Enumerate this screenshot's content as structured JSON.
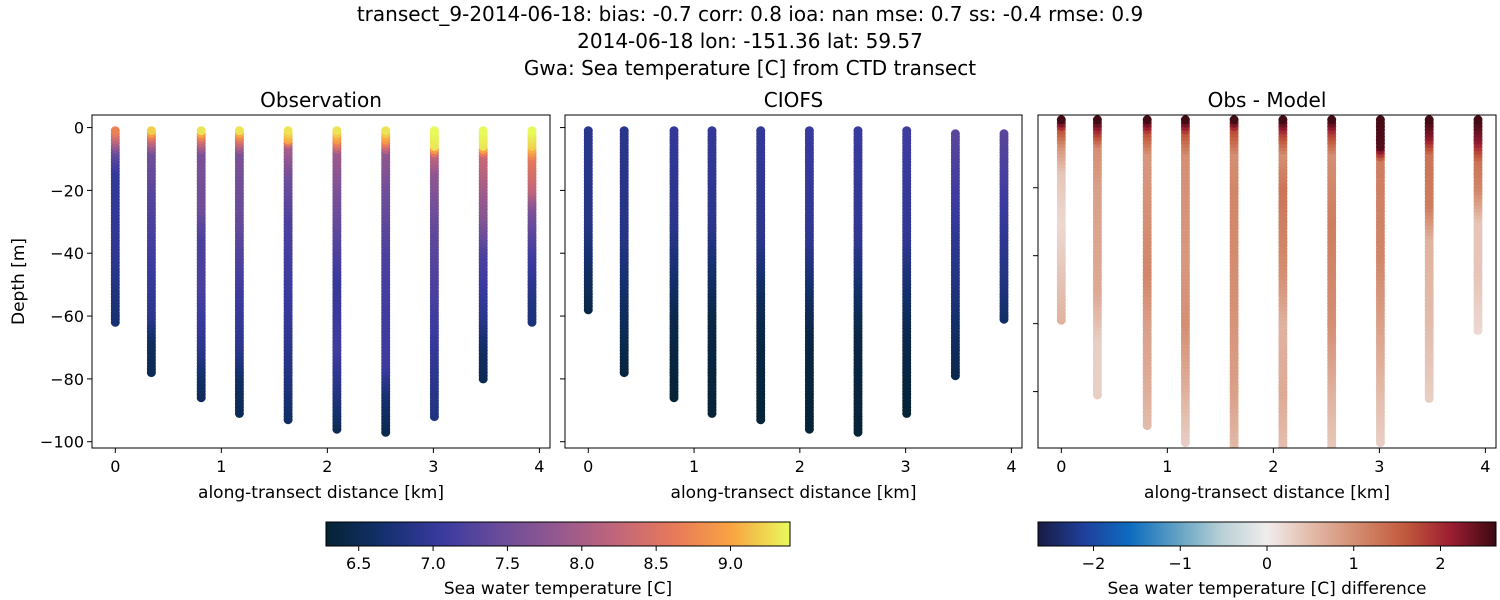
{
  "figure": {
    "title_lines": [
      "transect_9-2014-06-18: bias: -0.7  corr: 0.8  ioa: nan  mse: 0.7  ss: -0.4  rmse: 0.9",
      "2014-06-18 lon: -151.36 lat: 59.57",
      "Gwa: Sea temperature [C] from CTD transect"
    ]
  },
  "chart_data": [
    {
      "type": "scatter",
      "title": "Observation",
      "xlabel": "along-transect distance [km]",
      "ylabel": "Depth [m]",
      "xlim": [
        -0.22,
        4.1
      ],
      "ylim": [
        -102,
        4
      ],
      "xticks": [
        "0",
        "1",
        "2",
        "3",
        "4"
      ],
      "yticks": [
        "0",
        "−20",
        "−40",
        "−60",
        "−80",
        "−100"
      ],
      "colormap": "thermal",
      "clim": [
        6.28,
        9.4
      ],
      "stations": [
        {
          "x": 0.0,
          "top": -1,
          "bottom": -62,
          "profile": [
            [
              -1,
              8.7
            ],
            [
              -4,
              8.2
            ],
            [
              -8,
              7.4
            ],
            [
              -14,
              7.0
            ],
            [
              -40,
              6.95
            ],
            [
              -55,
              6.75
            ],
            [
              -62,
              6.7
            ]
          ]
        },
        {
          "x": 0.34,
          "top": -1,
          "bottom": -78,
          "profile": [
            [
              -1,
              9.2
            ],
            [
              -4,
              8.3
            ],
            [
              -8,
              7.5
            ],
            [
              -20,
              7.3
            ],
            [
              -40,
              7.1
            ],
            [
              -60,
              6.9
            ],
            [
              -68,
              6.55
            ],
            [
              -78,
              6.5
            ]
          ]
        },
        {
          "x": 0.81,
          "top": -1,
          "bottom": -86,
          "profile": [
            [
              -1,
              9.3
            ],
            [
              -4,
              8.4
            ],
            [
              -8,
              7.6
            ],
            [
              -25,
              7.5
            ],
            [
              -35,
              7.2
            ],
            [
              -50,
              7.2
            ],
            [
              -70,
              6.9
            ],
            [
              -80,
              6.6
            ],
            [
              -86,
              6.55
            ]
          ]
        },
        {
          "x": 1.17,
          "top": -1,
          "bottom": -91,
          "profile": [
            [
              -1,
              9.3
            ],
            [
              -4,
              8.5
            ],
            [
              -8,
              7.6
            ],
            [
              -30,
              7.4
            ],
            [
              -50,
              7.1
            ],
            [
              -70,
              6.9
            ],
            [
              -80,
              6.6
            ],
            [
              -91,
              6.5
            ]
          ]
        },
        {
          "x": 1.63,
          "top": -1,
          "bottom": -93,
          "profile": [
            [
              -1,
              9.3
            ],
            [
              -4,
              9.0
            ],
            [
              -6,
              8.0
            ],
            [
              -15,
              7.5
            ],
            [
              -30,
              7.2
            ],
            [
              -60,
              7.0
            ],
            [
              -80,
              6.8
            ],
            [
              -93,
              6.6
            ]
          ]
        },
        {
          "x": 2.09,
          "top": -1,
          "bottom": -96,
          "profile": [
            [
              -1,
              9.3
            ],
            [
              -4,
              8.9
            ],
            [
              -8,
              7.9
            ],
            [
              -20,
              7.6
            ],
            [
              -35,
              7.3
            ],
            [
              -50,
              7.0
            ],
            [
              -70,
              7.1
            ],
            [
              -85,
              6.8
            ],
            [
              -96,
              6.5
            ]
          ]
        },
        {
          "x": 2.55,
          "top": -1,
          "bottom": -97,
          "profile": [
            [
              -1,
              9.3
            ],
            [
              -4,
              8.9
            ],
            [
              -8,
              7.8
            ],
            [
              -20,
              7.5
            ],
            [
              -40,
              7.2
            ],
            [
              -60,
              7.1
            ],
            [
              -75,
              7.1
            ],
            [
              -85,
              6.7
            ],
            [
              -97,
              6.45
            ]
          ]
        },
        {
          "x": 3.01,
          "top": -1,
          "bottom": -92,
          "profile": [
            [
              -1,
              9.4
            ],
            [
              -6,
              9.3
            ],
            [
              -9,
              8.2
            ],
            [
              -14,
              7.8
            ],
            [
              -30,
              7.4
            ],
            [
              -50,
              7.2
            ],
            [
              -70,
              7.0
            ],
            [
              -92,
              6.8
            ]
          ]
        },
        {
          "x": 3.47,
          "top": -1,
          "bottom": -80,
          "profile": [
            [
              -1,
              9.4
            ],
            [
              -6,
              9.3
            ],
            [
              -9,
              8.3
            ],
            [
              -18,
              8.0
            ],
            [
              -28,
              7.7
            ],
            [
              -40,
              7.2
            ],
            [
              -60,
              6.9
            ],
            [
              -70,
              6.6
            ],
            [
              -80,
              6.5
            ]
          ]
        },
        {
          "x": 3.93,
          "top": -1,
          "bottom": -62,
          "profile": [
            [
              -1,
              9.4
            ],
            [
              -6,
              9.2
            ],
            [
              -10,
              8.6
            ],
            [
              -20,
              8.2
            ],
            [
              -26,
              7.6
            ],
            [
              -40,
              7.1
            ],
            [
              -55,
              6.8
            ],
            [
              -62,
              6.75
            ]
          ]
        }
      ]
    },
    {
      "type": "scatter",
      "title": "CIOFS",
      "xlabel": "along-transect distance [km]",
      "xlim": [
        -0.22,
        4.1
      ],
      "ylim": [
        -102,
        4
      ],
      "xticks": [
        "0",
        "1",
        "2",
        "3",
        "4"
      ],
      "colormap": "thermal",
      "clim": [
        6.28,
        9.4
      ],
      "stations": [
        {
          "x": 0.0,
          "top": -1,
          "bottom": -58,
          "profile": [
            [
              -1,
              6.9
            ],
            [
              -30,
              6.85
            ],
            [
              -45,
              6.6
            ],
            [
              -58,
              6.4
            ]
          ]
        },
        {
          "x": 0.34,
          "top": -1,
          "bottom": -78,
          "profile": [
            [
              -1,
              6.9
            ],
            [
              -35,
              6.85
            ],
            [
              -55,
              6.6
            ],
            [
              -78,
              6.35
            ]
          ]
        },
        {
          "x": 0.81,
          "top": -1,
          "bottom": -86,
          "profile": [
            [
              -1,
              7.0
            ],
            [
              -30,
              6.9
            ],
            [
              -45,
              6.7
            ],
            [
              -60,
              6.45
            ],
            [
              -86,
              6.3
            ]
          ]
        },
        {
          "x": 1.17,
          "top": -1,
          "bottom": -91,
          "profile": [
            [
              -1,
              7.0
            ],
            [
              -30,
              6.9
            ],
            [
              -45,
              6.65
            ],
            [
              -60,
              6.4
            ],
            [
              -91,
              6.3
            ]
          ]
        },
        {
          "x": 1.63,
          "top": -1,
          "bottom": -93,
          "profile": [
            [
              -1,
              7.0
            ],
            [
              -35,
              6.9
            ],
            [
              -50,
              6.6
            ],
            [
              -65,
              6.4
            ],
            [
              -93,
              6.3
            ]
          ]
        },
        {
          "x": 2.09,
          "top": -1,
          "bottom": -96,
          "profile": [
            [
              -1,
              7.05
            ],
            [
              -35,
              6.95
            ],
            [
              -50,
              6.65
            ],
            [
              -65,
              6.4
            ],
            [
              -96,
              6.3
            ]
          ]
        },
        {
          "x": 2.55,
          "top": -1,
          "bottom": -97,
          "profile": [
            [
              -1,
              7.05
            ],
            [
              -35,
              6.95
            ],
            [
              -50,
              6.65
            ],
            [
              -65,
              6.4
            ],
            [
              -97,
              6.3
            ]
          ]
        },
        {
          "x": 3.01,
          "top": -1,
          "bottom": -91,
          "profile": [
            [
              -1,
              7.1
            ],
            [
              -35,
              6.95
            ],
            [
              -50,
              6.7
            ],
            [
              -65,
              6.45
            ],
            [
              -91,
              6.3
            ]
          ]
        },
        {
          "x": 3.47,
          "top": -2,
          "bottom": -79,
          "profile": [
            [
              -2,
              7.3
            ],
            [
              -30,
              7.0
            ],
            [
              -50,
              6.8
            ],
            [
              -65,
              6.6
            ],
            [
              -79,
              6.45
            ]
          ]
        },
        {
          "x": 3.93,
          "top": -2,
          "bottom": -61,
          "profile": [
            [
              -2,
              7.3
            ],
            [
              -30,
              7.0
            ],
            [
              -50,
              6.8
            ],
            [
              -61,
              6.6
            ]
          ]
        }
      ]
    },
    {
      "type": "scatter",
      "title": "Obs - Model",
      "xlabel": "along-transect distance [km]",
      "xlim": [
        -0.22,
        4.1
      ],
      "ylim": [
        -96.6,
        1.4
      ],
      "xticks": [
        "0",
        "1",
        "2",
        "3",
        "4"
      ],
      "yticks_unlabeled": [
        -20,
        -40,
        -60,
        -80
      ],
      "colormap": "balance",
      "clim": [
        -2.64,
        2.64
      ],
      "stations": [
        {
          "x": 0.0,
          "top": 0,
          "bottom": -59,
          "profile": [
            [
              0,
              2.6
            ],
            [
              -3,
              1.6
            ],
            [
              -8,
              0.9
            ],
            [
              -15,
              0.4
            ],
            [
              -30,
              0.2
            ],
            [
              -45,
              0.4
            ],
            [
              -59,
              0.6
            ]
          ]
        },
        {
          "x": 0.34,
          "top": 0,
          "bottom": -81,
          "profile": [
            [
              0,
              2.6
            ],
            [
              -4,
              1.8
            ],
            [
              -8,
              1.0
            ],
            [
              -20,
              0.8
            ],
            [
              -50,
              0.7
            ],
            [
              -65,
              0.3
            ],
            [
              -81,
              0.3
            ]
          ]
        },
        {
          "x": 0.81,
          "top": 0,
          "bottom": -90,
          "profile": [
            [
              0,
              2.6
            ],
            [
              -4,
              1.6
            ],
            [
              -10,
              0.9
            ],
            [
              -30,
              1.0
            ],
            [
              -45,
              1.1
            ],
            [
              -60,
              0.8
            ],
            [
              -75,
              0.7
            ],
            [
              -90,
              0.5
            ]
          ]
        },
        {
          "x": 1.17,
          "top": 0,
          "bottom": -95,
          "profile": [
            [
              0,
              2.6
            ],
            [
              -4,
              1.6
            ],
            [
              -10,
              1.0
            ],
            [
              -40,
              0.9
            ],
            [
              -60,
              1.0
            ],
            [
              -80,
              0.6
            ],
            [
              -95,
              0.3
            ]
          ]
        },
        {
          "x": 1.63,
          "top": 0,
          "bottom": -97,
          "profile": [
            [
              0,
              2.6
            ],
            [
              -3,
              1.7
            ],
            [
              -10,
              1.0
            ],
            [
              -20,
              1.1
            ],
            [
              -50,
              1.0
            ],
            [
              -80,
              0.8
            ],
            [
              -97,
              0.5
            ]
          ]
        },
        {
          "x": 2.09,
          "top": 0,
          "bottom": -101,
          "profile": [
            [
              0,
              2.6
            ],
            [
              -4,
              1.8
            ],
            [
              -10,
              1.0
            ],
            [
              -20,
              1.3
            ],
            [
              -45,
              1.0
            ],
            [
              -60,
              0.6
            ],
            [
              -80,
              0.7
            ],
            [
              -101,
              0.4
            ]
          ]
        },
        {
          "x": 2.55,
          "top": 0,
          "bottom": -101,
          "profile": [
            [
              0,
              2.6
            ],
            [
              -4,
              1.8
            ],
            [
              -10,
              1.0
            ],
            [
              -30,
              1.2
            ],
            [
              -60,
              1.0
            ],
            [
              -80,
              0.6
            ],
            [
              -101,
              0.3
            ]
          ]
        },
        {
          "x": 3.01,
          "top": 0,
          "bottom": -95,
          "profile": [
            [
              0,
              2.6
            ],
            [
              -8,
              2.5
            ],
            [
              -12,
              1.2
            ],
            [
              -40,
              1.1
            ],
            [
              -60,
              0.8
            ],
            [
              -80,
              0.5
            ],
            [
              -95,
              0.3
            ]
          ]
        },
        {
          "x": 3.47,
          "top": 0,
          "bottom": -82,
          "profile": [
            [
              0,
              2.6
            ],
            [
              -5,
              2.2
            ],
            [
              -10,
              1.3
            ],
            [
              -25,
              1.2
            ],
            [
              -35,
              0.6
            ],
            [
              -60,
              0.5
            ],
            [
              -82,
              0.3
            ]
          ]
        },
        {
          "x": 3.93,
          "top": 0,
          "bottom": -62,
          "profile": [
            [
              0,
              2.6
            ],
            [
              -6,
              2.2
            ],
            [
              -12,
              1.3
            ],
            [
              -20,
              1.1
            ],
            [
              -30,
              0.4
            ],
            [
              -45,
              0.4
            ],
            [
              -62,
              0.2
            ]
          ]
        }
      ]
    }
  ],
  "colorbars": [
    {
      "label": "Sea water temperature [C]",
      "colormap": "thermal",
      "range": [
        6.28,
        9.4
      ],
      "ticks": [
        6.5,
        7.0,
        7.5,
        8.0,
        8.5,
        9.0
      ],
      "tick_labels": [
        "6.5",
        "7.0",
        "7.5",
        "8.0",
        "8.5",
        "9.0"
      ]
    },
    {
      "label": "Sea water temperature [C] difference",
      "colormap": "balance",
      "range": [
        -2.64,
        2.64
      ],
      "ticks": [
        -2,
        -1,
        0,
        1,
        2
      ],
      "tick_labels": [
        "−2",
        "−1",
        "0",
        "1",
        "2"
      ]
    }
  ],
  "colormaps": {
    "thermal": [
      "#042333",
      "#14306e",
      "#3a3a9f",
      "#6a4c9a",
      "#95588f",
      "#c1667a",
      "#e7795b",
      "#f9a442",
      "#e8fa5b"
    ],
    "balance": [
      "#181c43",
      "#1f3f9a",
      "#0c6cc0",
      "#5d9fc2",
      "#b7d0d6",
      "#f1ecec",
      "#e2b9a7",
      "#d38a6d",
      "#c25a3d",
      "#9c1e32",
      "#3c0912"
    ]
  }
}
